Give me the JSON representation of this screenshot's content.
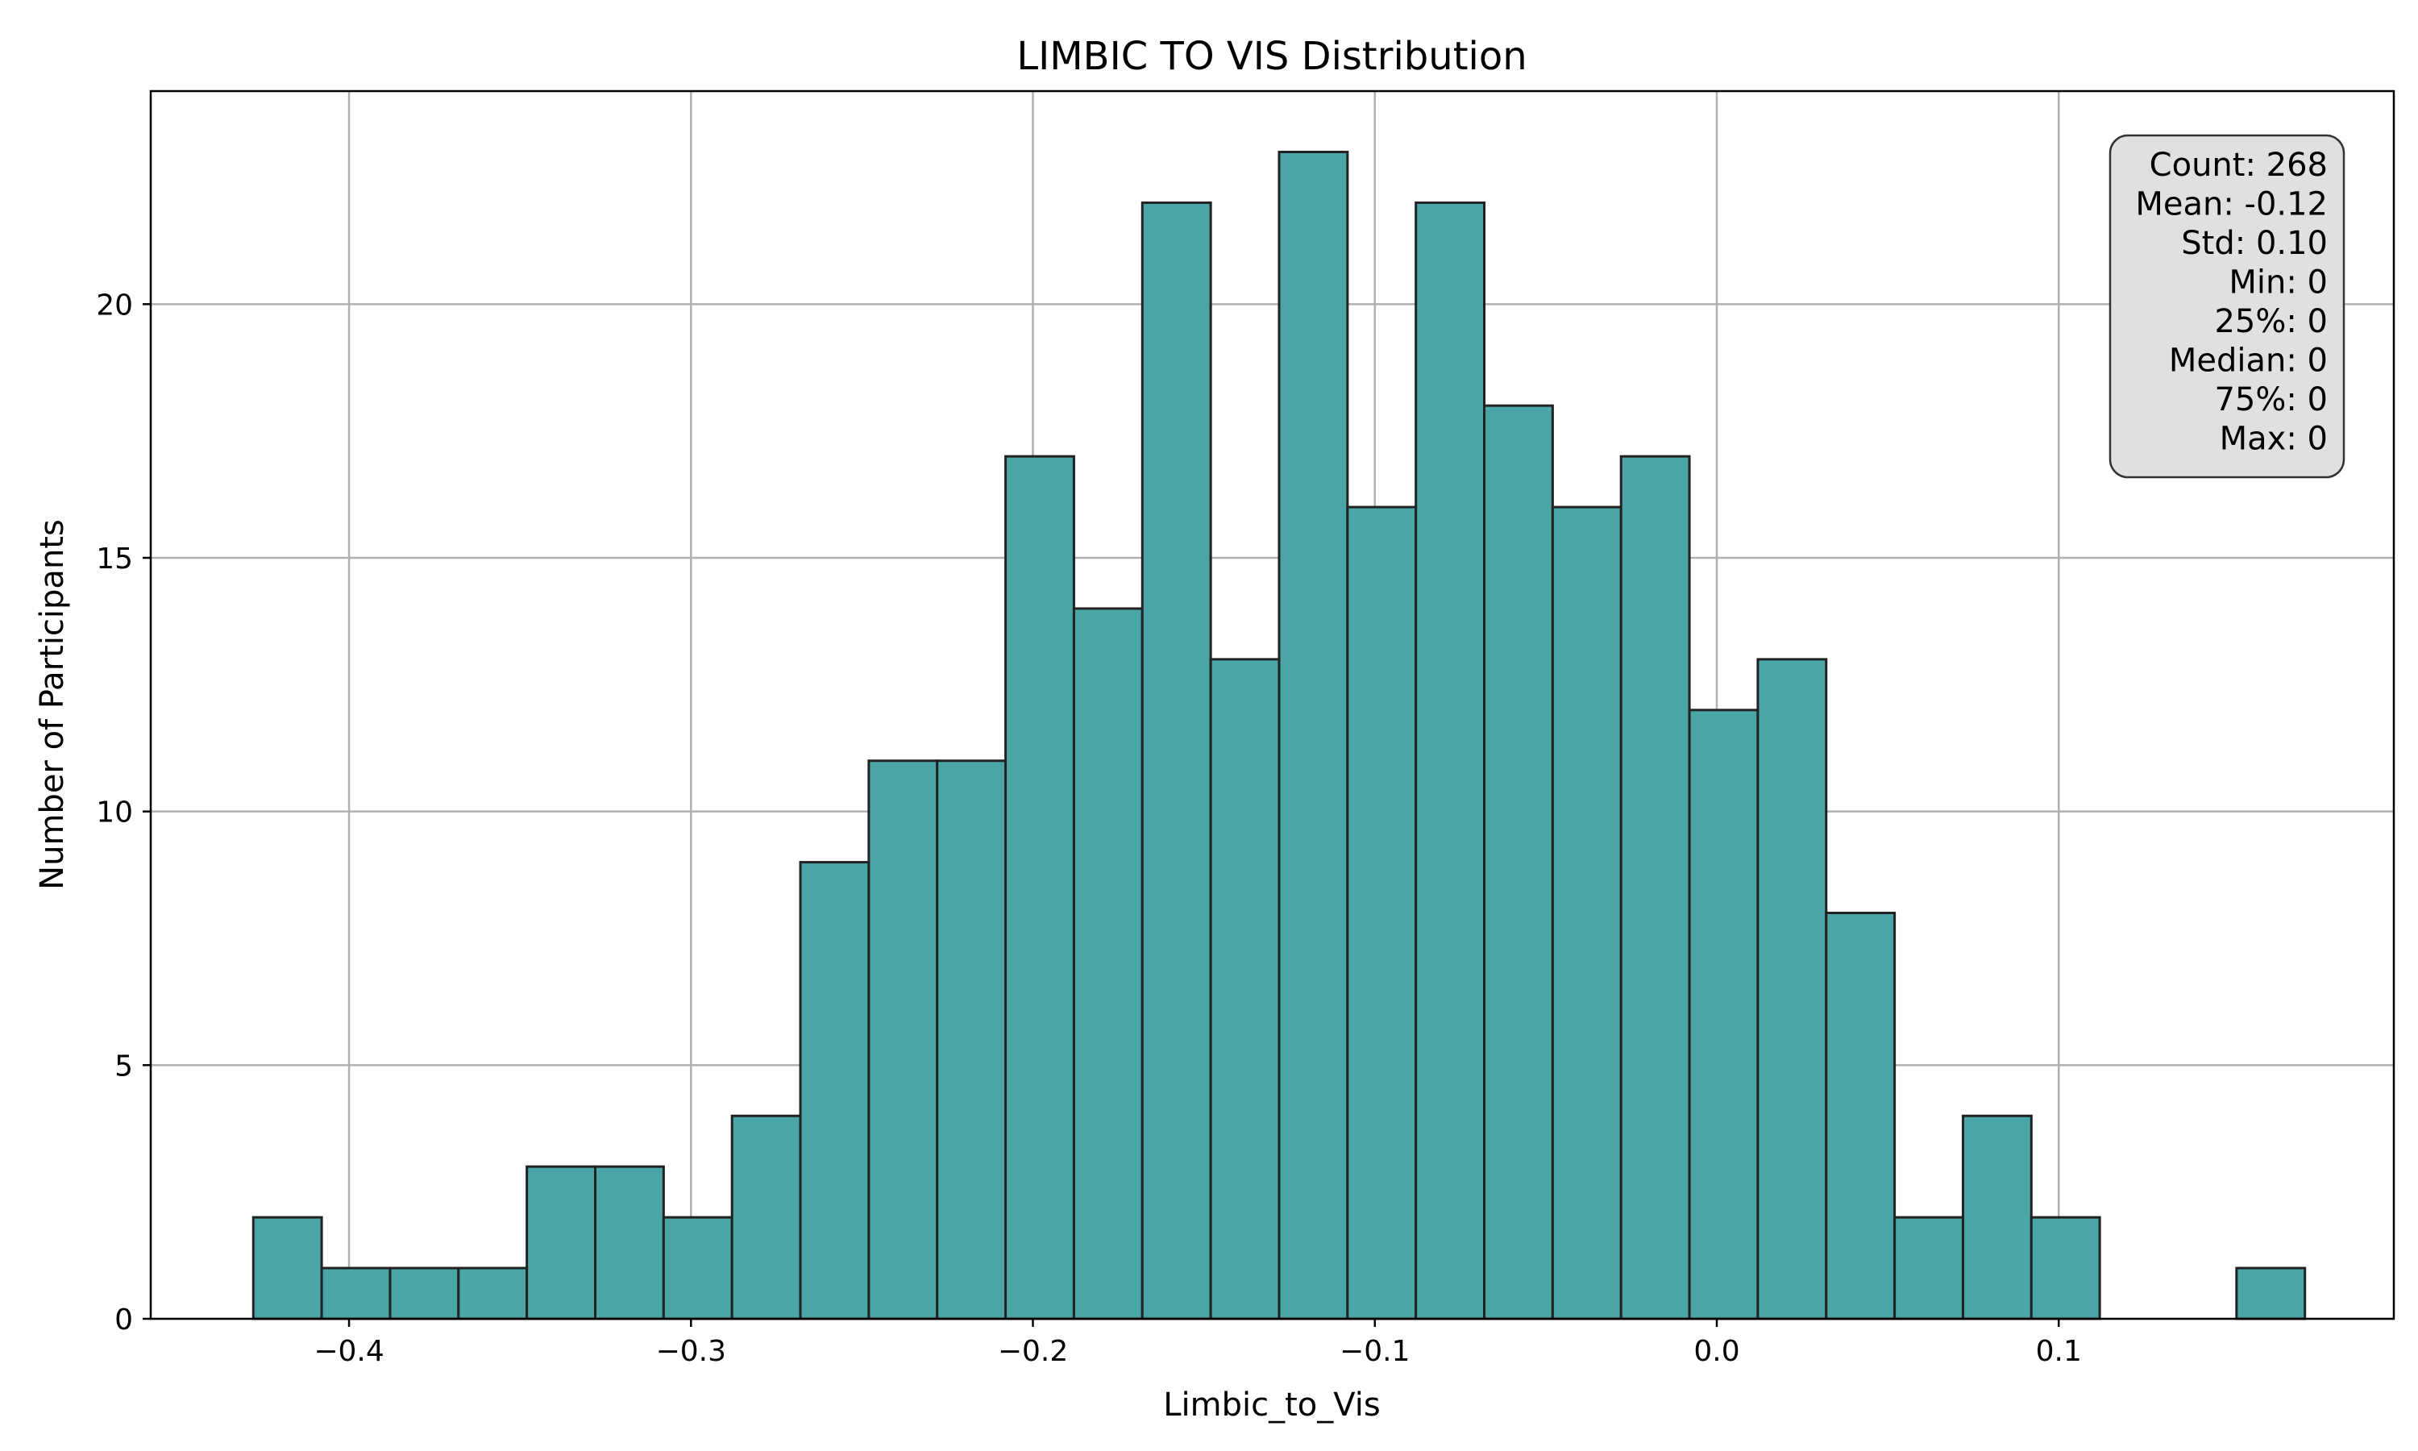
{
  "chart_data": {
    "type": "bar",
    "title": "LIMBIC TO VIS Distribution",
    "xlabel": "Limbic_to_Vis",
    "ylabel": "Number of Participants",
    "xlim": [
      -0.458,
      0.198
    ],
    "ylim": [
      0,
      24.2
    ],
    "grid": true,
    "bar_color": "#4aa6a6",
    "edge_color": "#222222",
    "bin_width": 0.02,
    "bins": [
      {
        "x0": -0.428,
        "count": 2
      },
      {
        "x0": -0.408,
        "count": 1
      },
      {
        "x0": -0.388,
        "count": 1
      },
      {
        "x0": -0.368,
        "count": 1
      },
      {
        "x0": -0.348,
        "count": 3
      },
      {
        "x0": -0.328,
        "count": 3
      },
      {
        "x0": -0.308,
        "count": 2
      },
      {
        "x0": -0.288,
        "count": 4
      },
      {
        "x0": -0.268,
        "count": 9
      },
      {
        "x0": -0.248,
        "count": 11
      },
      {
        "x0": -0.228,
        "count": 11
      },
      {
        "x0": -0.208,
        "count": 17
      },
      {
        "x0": -0.188,
        "count": 14
      },
      {
        "x0": -0.168,
        "count": 22
      },
      {
        "x0": -0.148,
        "count": 13
      },
      {
        "x0": -0.128,
        "count": 23
      },
      {
        "x0": -0.108,
        "count": 16
      },
      {
        "x0": -0.088,
        "count": 22
      },
      {
        "x0": -0.068,
        "count": 18
      },
      {
        "x0": -0.048,
        "count": 16
      },
      {
        "x0": -0.028,
        "count": 17
      },
      {
        "x0": -0.008,
        "count": 12
      },
      {
        "x0": 0.012,
        "count": 13
      },
      {
        "x0": 0.032,
        "count": 8
      },
      {
        "x0": 0.052,
        "count": 2
      },
      {
        "x0": 0.072,
        "count": 4
      },
      {
        "x0": 0.092,
        "count": 2
      },
      {
        "x0": 0.112,
        "count": 0
      },
      {
        "x0": 0.132,
        "count": 0
      },
      {
        "x0": 0.152,
        "count": 1
      }
    ],
    "x_ticks": [
      {
        "value": -0.4,
        "label": "−0.4"
      },
      {
        "value": -0.3,
        "label": "−0.3"
      },
      {
        "value": -0.2,
        "label": "−0.2"
      },
      {
        "value": -0.1,
        "label": "−0.1"
      },
      {
        "value": 0.0,
        "label": "0.0"
      },
      {
        "value": 0.1,
        "label": "0.1"
      }
    ],
    "y_ticks": [
      {
        "value": 0,
        "label": "0"
      },
      {
        "value": 5,
        "label": "5"
      },
      {
        "value": 10,
        "label": "10"
      },
      {
        "value": 15,
        "label": "15"
      },
      {
        "value": 20,
        "label": "20"
      }
    ],
    "stats_box": {
      "placement": "top-right",
      "lines": [
        "Count: 268",
        "Mean: -0.12",
        "Std: 0.10",
        "Min: 0",
        "25%: 0",
        "Median: 0",
        "75%: 0",
        "Max: 0"
      ]
    }
  }
}
